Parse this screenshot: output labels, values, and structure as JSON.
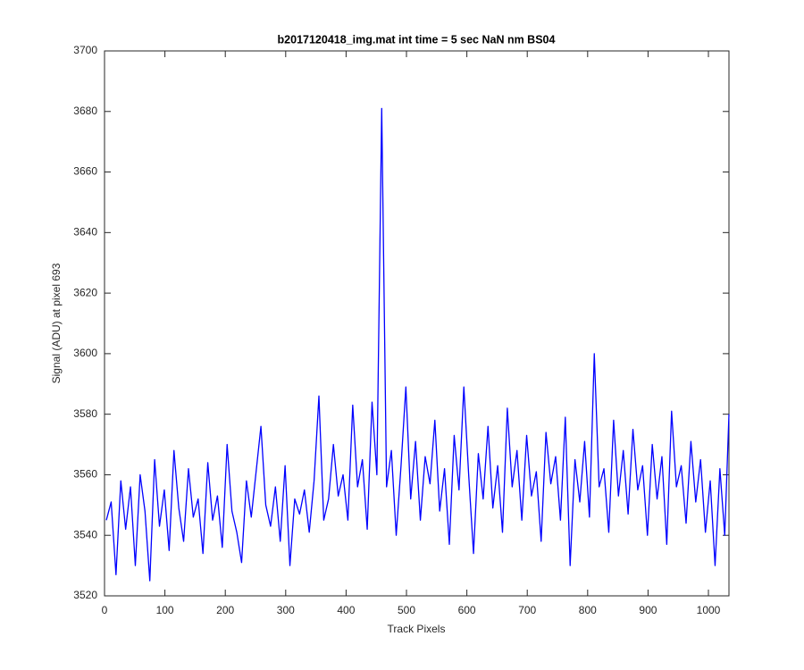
{
  "chart_data": {
    "type": "line",
    "title": "b2017120418_img.mat int time = 5 sec  NaN nm BS04",
    "xlabel": "Track Pixels",
    "ylabel": "Signal (ADU) at pixel 693",
    "xlim": [
      0,
      1034
    ],
    "ylim": [
      3520,
      3700
    ],
    "xticks": [
      0,
      100,
      200,
      300,
      400,
      500,
      600,
      700,
      800,
      900,
      1000
    ],
    "yticks": [
      3520,
      3540,
      3560,
      3580,
      3600,
      3620,
      3640,
      3660,
      3680,
      3700
    ],
    "grid": false,
    "series": [
      {
        "name": "signal",
        "color": "#0000ff",
        "x": [
          3,
          11,
          19,
          27,
          35,
          43,
          51,
          59,
          67,
          75,
          83,
          91,
          99,
          107,
          115,
          123,
          131,
          139,
          147,
          155,
          163,
          171,
          179,
          187,
          195,
          203,
          211,
          219,
          227,
          235,
          243,
          251,
          259,
          267,
          275,
          283,
          291,
          299,
          307,
          315,
          323,
          331,
          339,
          347,
          355,
          363,
          371,
          379,
          387,
          395,
          403,
          411,
          419,
          427,
          435,
          443,
          451,
          459,
          467,
          475,
          483,
          491,
          499,
          507,
          515,
          523,
          531,
          539,
          547,
          555,
          563,
          571,
          579,
          587,
          595,
          603,
          611,
          619,
          627,
          635,
          643,
          651,
          659,
          667,
          675,
          683,
          691,
          699,
          707,
          715,
          723,
          731,
          739,
          747,
          755,
          763,
          771,
          779,
          787,
          795,
          803,
          811,
          819,
          827,
          835,
          843,
          851,
          859,
          867,
          875,
          883,
          891,
          899,
          907,
          915,
          923,
          931,
          939,
          947,
          955,
          963,
          971,
          979,
          987,
          995,
          1003,
          1011,
          1019,
          1027,
          1034
        ],
        "values": [
          3545,
          3551,
          3527,
          3558,
          3542,
          3556,
          3530,
          3560,
          3548,
          3525,
          3565,
          3543,
          3555,
          3535,
          3568,
          3549,
          3538,
          3562,
          3546,
          3552,
          3534,
          3564,
          3545,
          3553,
          3536,
          3570,
          3548,
          3541,
          3531,
          3558,
          3546,
          3561,
          3576,
          3550,
          3543,
          3556,
          3538,
          3563,
          3530,
          3552,
          3547,
          3555,
          3541,
          3558,
          3586,
          3545,
          3552,
          3570,
          3553,
          3560,
          3545,
          3583,
          3556,
          3565,
          3542,
          3584,
          3560,
          3681,
          3556,
          3568,
          3540,
          3563,
          3589,
          3552,
          3571,
          3545,
          3566,
          3557,
          3578,
          3548,
          3562,
          3537,
          3573,
          3555,
          3589,
          3560,
          3534,
          3567,
          3552,
          3576,
          3549,
          3563,
          3541,
          3582,
          3556,
          3568,
          3545,
          3573,
          3553,
          3561,
          3538,
          3574,
          3557,
          3566,
          3545,
          3579,
          3530,
          3565,
          3551,
          3571,
          3546,
          3600,
          3556,
          3562,
          3541,
          3578,
          3553,
          3568,
          3547,
          3575,
          3555,
          3563,
          3540,
          3570,
          3552,
          3566,
          3537,
          3581,
          3556,
          3563,
          3544,
          3571,
          3551,
          3565,
          3541,
          3558,
          3530,
          3562,
          3540,
          3580
        ]
      }
    ]
  }
}
